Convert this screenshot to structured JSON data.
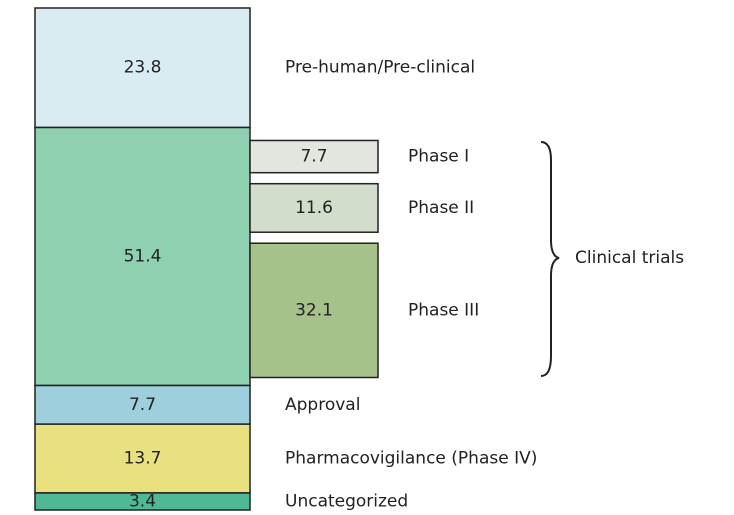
{
  "chart_data": {
    "type": "stacked_bar",
    "segments": [
      {
        "name": "Pre-human/Pre-clinical",
        "value": 23.8,
        "color": "#d8ecf1"
      },
      {
        "name": null,
        "value": 51.4,
        "color": "#8fd0b1",
        "breakdown": {
          "label": "Clinical trials",
          "categories": [
            "Phase I",
            "Phase II",
            "Phase III"
          ],
          "values": [
            7.7,
            11.6,
            32.1
          ],
          "colors": [
            "#e2e6de",
            "#d3ddcc",
            "#a7c18b"
          ]
        }
      },
      {
        "name": "Approval",
        "value": 7.7,
        "color": "#9dcfdd"
      },
      {
        "name": "Pharmacovigilance (Phase IV)",
        "value": 13.7,
        "color": "#e9e07f"
      },
      {
        "name": "Uncategorized",
        "value": 3.4,
        "color": "#4fb996"
      }
    ]
  }
}
